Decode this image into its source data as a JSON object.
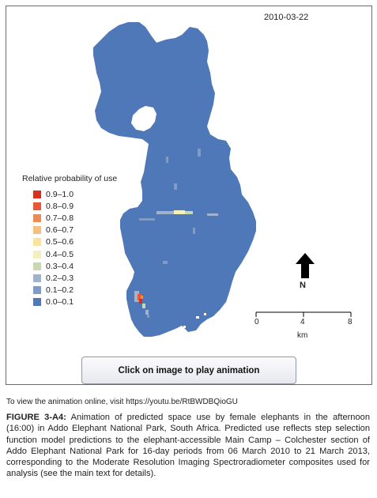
{
  "figure": {
    "date_label": "2010-03-22",
    "play_button_label": "Click on image to play animation",
    "online_note": "To view the animation online, visit https://youtu.be/RtBWDBQioGU",
    "caption_label": "FIGURE 3-A4:",
    "caption_text": " Animation of predicted space use by female elephants in the afternoon (16:00) in Addo Elephant National Park, South Africa. Predicted use reflects step selection function model predictions to the elephant-accessible Main Camp – Colchester section of Addo Elephant National Park for 16-day periods from 06 March 2010 to 21 March 2013, corresponding to the Moderate Resolution Imaging Spectroradiometer composites used for analysis (see the main text for details)."
  },
  "map": {
    "base_color": "#4f78b8",
    "legend": {
      "title": "Relative probability of use",
      "items": [
        {
          "label": "0.9–1.0",
          "color": "#d7301f"
        },
        {
          "label": "0.8–0.9",
          "color": "#e8573a"
        },
        {
          "label": "0.7–0.8",
          "color": "#f08a55"
        },
        {
          "label": "0.6–0.7",
          "color": "#f6bf82"
        },
        {
          "label": "0.5–0.6",
          "color": "#fbe39e"
        },
        {
          "label": "0.4–0.5",
          "color": "#f2f0be"
        },
        {
          "label": "0.3–0.4",
          "color": "#c8d8b5"
        },
        {
          "label": "0.2–0.3",
          "color": "#9fb3cc"
        },
        {
          "label": "0.1–0.2",
          "color": "#7f9cc7"
        },
        {
          "label": "0.0–0.1",
          "color": "#4f78b8"
        }
      ]
    },
    "north_label": "N",
    "scale": {
      "ticks": [
        "0",
        "4",
        "8"
      ],
      "unit": "km"
    }
  }
}
